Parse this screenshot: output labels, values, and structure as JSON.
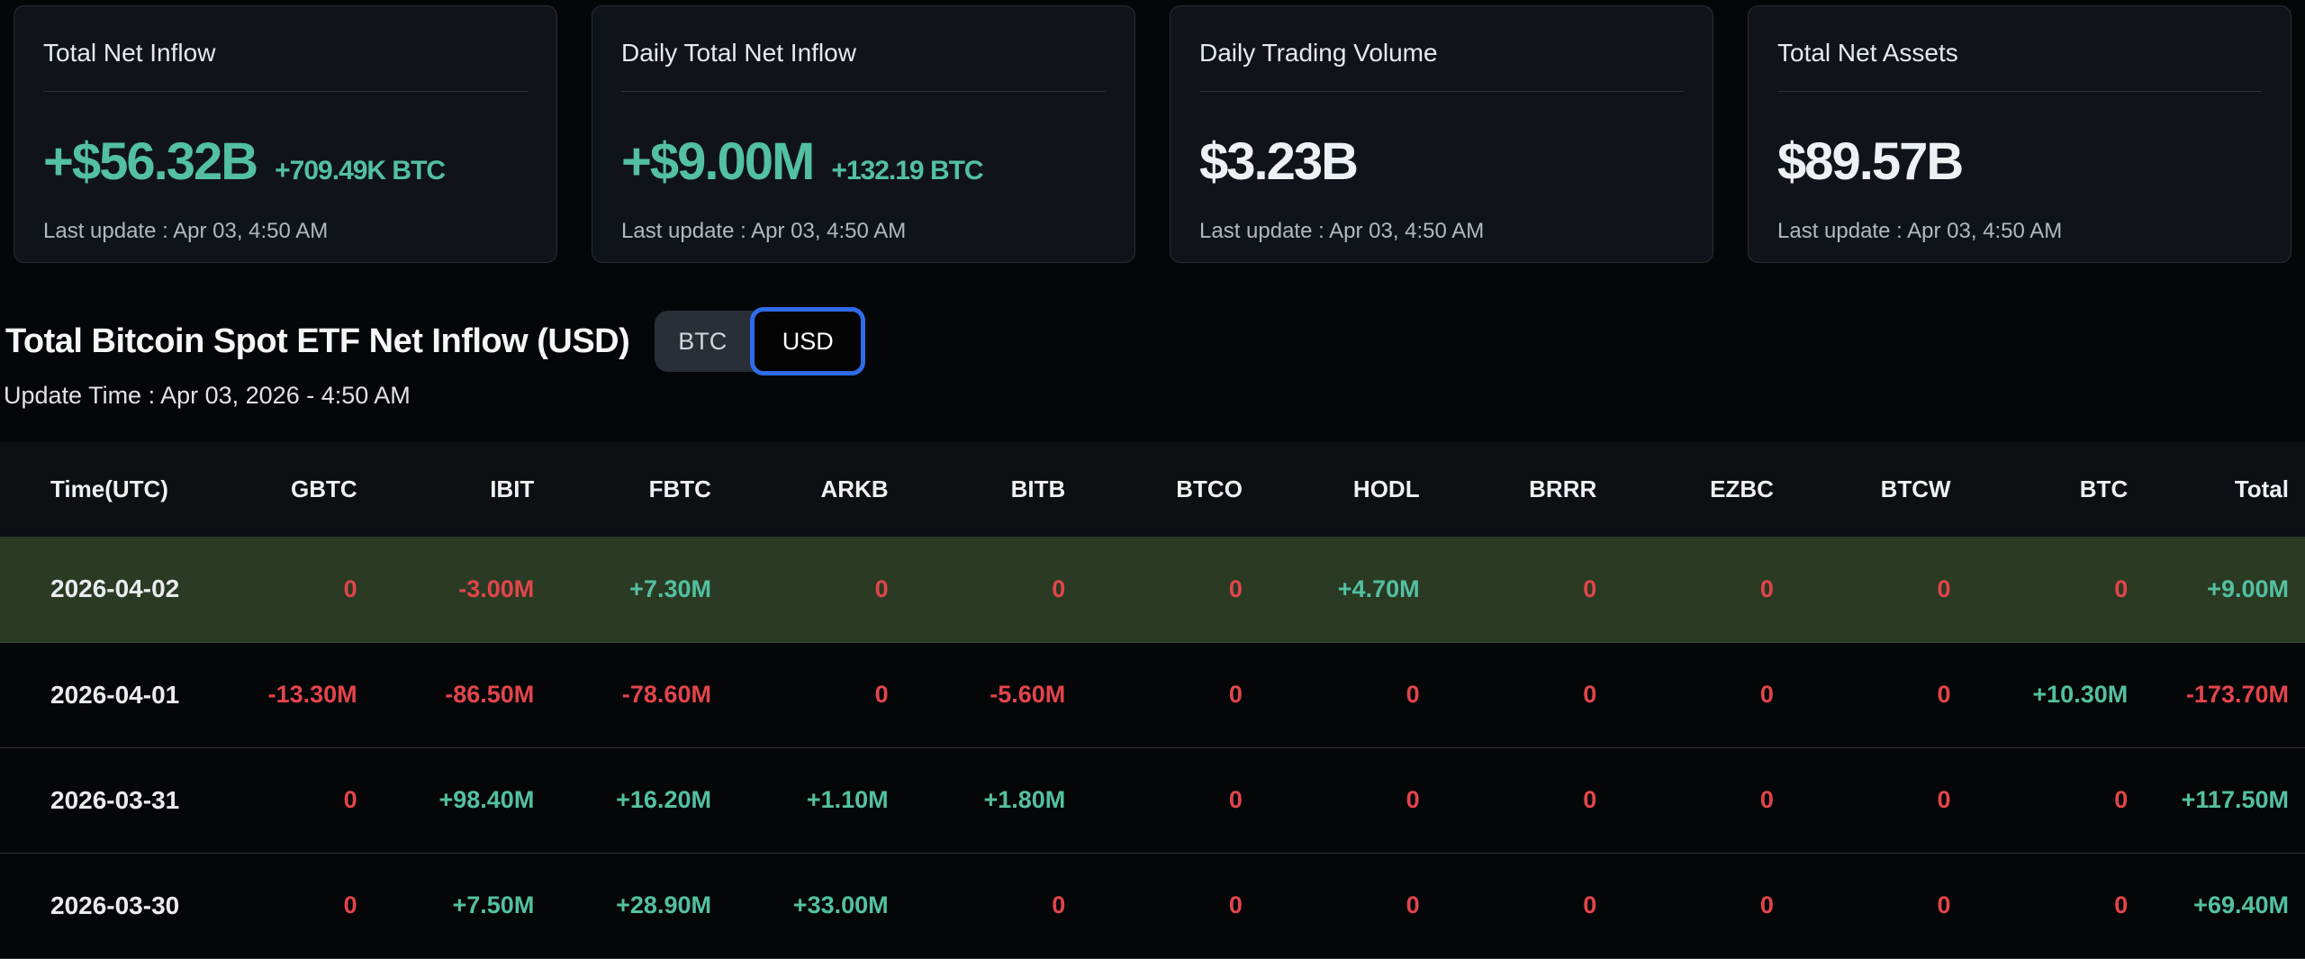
{
  "colors": {
    "positive": "#53c0a2",
    "negative": "#e2454b",
    "row_highlight": "#2a3a23",
    "toggle_active_border": "#2f6ce8"
  },
  "cards": [
    {
      "title": "Total Net Inflow",
      "value": "+$56.32B",
      "sub": "+709.49K BTC",
      "last_update": "Last update : Apr 03, 4:50 AM"
    },
    {
      "title": "Daily Total Net Inflow",
      "value": "+$9.00M",
      "sub": "+132.19 BTC",
      "last_update": "Last update : Apr 03, 4:50 AM"
    },
    {
      "title": "Daily Trading Volume",
      "value": "$3.23B",
      "sub": "",
      "last_update": "Last update : Apr 03, 4:50 AM"
    },
    {
      "title": "Total Net Assets",
      "value": "$89.57B",
      "sub": "",
      "last_update": "Last update : Apr 03, 4:50 AM"
    }
  ],
  "section": {
    "title": "Total Bitcoin Spot ETF Net Inflow (USD)",
    "toggle": {
      "options": [
        "BTC",
        "USD"
      ],
      "selected": "USD"
    },
    "update_time": "Update Time : Apr 03, 2026 - 4:50 AM"
  },
  "table": {
    "columns": [
      "Time(UTC)",
      "GBTC",
      "IBIT",
      "FBTC",
      "ARKB",
      "BITB",
      "BTCO",
      "HODL",
      "BRRR",
      "EZBC",
      "BTCW",
      "BTC",
      "Total"
    ],
    "rows": [
      {
        "date": "2026-04-02",
        "highlighted": true,
        "values": [
          "0",
          "-3.00M",
          "+7.30M",
          "0",
          "0",
          "0",
          "+4.70M",
          "0",
          "0",
          "0",
          "0",
          "+9.00M"
        ]
      },
      {
        "date": "2026-04-01",
        "highlighted": false,
        "values": [
          "-13.30M",
          "-86.50M",
          "-78.60M",
          "0",
          "-5.60M",
          "0",
          "0",
          "0",
          "0",
          "0",
          "+10.30M",
          "-173.70M"
        ]
      },
      {
        "date": "2026-03-31",
        "highlighted": false,
        "values": [
          "0",
          "+98.40M",
          "+16.20M",
          "+1.10M",
          "+1.80M",
          "0",
          "0",
          "0",
          "0",
          "0",
          "0",
          "+117.50M"
        ]
      },
      {
        "date": "2026-03-30",
        "highlighted": false,
        "values": [
          "0",
          "+7.50M",
          "+28.90M",
          "+33.00M",
          "0",
          "0",
          "0",
          "0",
          "0",
          "0",
          "0",
          "+69.40M"
        ]
      }
    ]
  }
}
